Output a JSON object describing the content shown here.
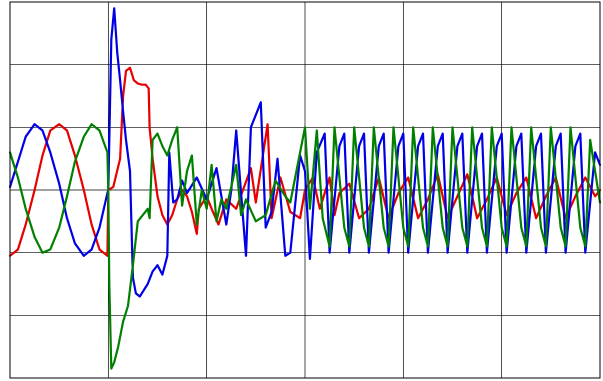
{
  "chart_data": {
    "type": "line",
    "title": "",
    "xlabel": "",
    "ylabel": "",
    "x_range": [
      0,
      6
    ],
    "y_range": [
      -3,
      3
    ],
    "grid": true,
    "legend": "none",
    "fault_time": 1.0,
    "series": [
      {
        "color": "#e60000",
        "points": [
          [
            0,
            -1.05
          ],
          [
            0.08,
            -0.95
          ],
          [
            0.16,
            -0.55
          ],
          [
            0.25,
            0.0
          ],
          [
            0.33,
            0.55
          ],
          [
            0.41,
            0.95
          ],
          [
            0.5,
            1.05
          ],
          [
            0.58,
            0.95
          ],
          [
            0.66,
            0.55
          ],
          [
            0.75,
            0.0
          ],
          [
            0.83,
            -0.55
          ],
          [
            0.91,
            -0.95
          ],
          [
            0.99,
            -1.05
          ],
          [
            1.0,
            0.0
          ],
          [
            1.05,
            0.05
          ],
          [
            1.12,
            0.5
          ],
          [
            1.15,
            1.5
          ],
          [
            1.18,
            1.9
          ],
          [
            1.22,
            1.95
          ],
          [
            1.26,
            1.75
          ],
          [
            1.3,
            1.7
          ],
          [
            1.34,
            1.68
          ],
          [
            1.38,
            1.68
          ],
          [
            1.41,
            1.62
          ],
          [
            1.42,
            1.0
          ],
          [
            1.45,
            0.5
          ],
          [
            1.5,
            -0.1
          ],
          [
            1.55,
            -0.4
          ],
          [
            1.6,
            -0.55
          ],
          [
            1.65,
            -0.4
          ],
          [
            1.7,
            -0.15
          ],
          [
            1.75,
            0.0
          ],
          [
            1.8,
            -0.1
          ],
          [
            1.85,
            -0.35
          ],
          [
            1.9,
            -0.7
          ],
          [
            1.92,
            -0.3
          ],
          [
            2.0,
            -0.1
          ],
          [
            2.05,
            -0.3
          ],
          [
            2.12,
            -0.55
          ],
          [
            2.2,
            -0.15
          ],
          [
            2.3,
            -0.3
          ],
          [
            2.45,
            0.35
          ],
          [
            2.5,
            -0.2
          ],
          [
            2.62,
            1.05
          ],
          [
            2.66,
            -0.45
          ],
          [
            2.75,
            0.2
          ],
          [
            2.85,
            -0.35
          ],
          [
            2.95,
            -0.45
          ],
          [
            3.0,
            0.0
          ],
          [
            3.08,
            0.2
          ],
          [
            3.15,
            -0.3
          ],
          [
            3.25,
            0.2
          ],
          [
            3.3,
            -0.4
          ],
          [
            3.35,
            -0.05
          ],
          [
            3.45,
            0.1
          ],
          [
            3.55,
            -0.45
          ],
          [
            3.65,
            -0.3
          ],
          [
            3.75,
            0.2
          ],
          [
            3.85,
            -0.45
          ],
          [
            3.95,
            -0.05
          ],
          [
            4.05,
            0.2
          ],
          [
            4.15,
            -0.45
          ],
          [
            4.25,
            -0.15
          ],
          [
            4.35,
            0.25
          ],
          [
            4.45,
            -0.45
          ],
          [
            4.55,
            -0.1
          ],
          [
            4.65,
            0.25
          ],
          [
            4.75,
            -0.45
          ],
          [
            4.85,
            -0.15
          ],
          [
            4.95,
            0.2
          ],
          [
            5.05,
            -0.4
          ],
          [
            5.15,
            -0.05
          ],
          [
            5.25,
            0.2
          ],
          [
            5.35,
            -0.45
          ],
          [
            5.45,
            -0.1
          ],
          [
            5.55,
            0.2
          ],
          [
            5.65,
            -0.45
          ],
          [
            5.75,
            -0.1
          ],
          [
            5.85,
            0.2
          ],
          [
            5.95,
            -0.1
          ],
          [
            6.0,
            0.0
          ]
        ]
      },
      {
        "color": "#0000e6",
        "points": [
          [
            0,
            0.05
          ],
          [
            0.08,
            0.45
          ],
          [
            0.16,
            0.85
          ],
          [
            0.25,
            1.05
          ],
          [
            0.33,
            0.95
          ],
          [
            0.41,
            0.6
          ],
          [
            0.5,
            0.1
          ],
          [
            0.58,
            -0.45
          ],
          [
            0.66,
            -0.85
          ],
          [
            0.75,
            -1.05
          ],
          [
            0.83,
            -0.95
          ],
          [
            0.91,
            -0.6
          ],
          [
            0.99,
            -0.05
          ],
          [
            1.0,
            0.0
          ],
          [
            1.03,
            2.4
          ],
          [
            1.06,
            2.9
          ],
          [
            1.09,
            2.2
          ],
          [
            1.12,
            1.75
          ],
          [
            1.15,
            1.25
          ],
          [
            1.18,
            0.8
          ],
          [
            1.22,
            0.3
          ],
          [
            1.25,
            -1.4
          ],
          [
            1.28,
            -1.65
          ],
          [
            1.32,
            -1.7
          ],
          [
            1.36,
            -1.6
          ],
          [
            1.4,
            -1.5
          ],
          [
            1.45,
            -1.3
          ],
          [
            1.5,
            -1.2
          ],
          [
            1.55,
            -1.35
          ],
          [
            1.6,
            -1.05
          ],
          [
            1.62,
            0.6
          ],
          [
            1.66,
            -0.2
          ],
          [
            1.7,
            -0.15
          ],
          [
            1.75,
            0.15
          ],
          [
            1.8,
            -0.05
          ],
          [
            1.9,
            0.2
          ],
          [
            2.0,
            -0.15
          ],
          [
            2.1,
            0.35
          ],
          [
            2.2,
            -0.55
          ],
          [
            2.25,
            0.0
          ],
          [
            2.3,
            0.95
          ],
          [
            2.4,
            -1.05
          ],
          [
            2.45,
            1.0
          ],
          [
            2.55,
            1.4
          ],
          [
            2.6,
            -0.6
          ],
          [
            2.66,
            -0.35
          ],
          [
            2.72,
            0.5
          ],
          [
            2.8,
            -1.05
          ],
          [
            2.85,
            -1.0
          ],
          [
            2.95,
            0.55
          ],
          [
            3.0,
            0.3
          ],
          [
            3.05,
            -1.1
          ],
          [
            3.12,
            0.6
          ],
          [
            3.2,
            0.9
          ],
          [
            3.25,
            -1.0
          ],
          [
            3.35,
            0.7
          ],
          [
            3.4,
            0.9
          ],
          [
            3.45,
            -1.0
          ],
          [
            3.55,
            0.7
          ],
          [
            3.6,
            0.9
          ],
          [
            3.65,
            -1.0
          ],
          [
            3.75,
            0.7
          ],
          [
            3.8,
            0.9
          ],
          [
            3.85,
            -1.0
          ],
          [
            3.95,
            0.7
          ],
          [
            4.0,
            0.9
          ],
          [
            4.05,
            -1.0
          ],
          [
            4.15,
            0.7
          ],
          [
            4.2,
            0.9
          ],
          [
            4.25,
            -1.0
          ],
          [
            4.35,
            0.7
          ],
          [
            4.4,
            0.9
          ],
          [
            4.45,
            -1.0
          ],
          [
            4.55,
            0.7
          ],
          [
            4.6,
            0.9
          ],
          [
            4.65,
            -1.0
          ],
          [
            4.75,
            0.7
          ],
          [
            4.8,
            0.9
          ],
          [
            4.85,
            -1.0
          ],
          [
            4.95,
            0.7
          ],
          [
            5.0,
            0.9
          ],
          [
            5.05,
            -1.0
          ],
          [
            5.15,
            0.7
          ],
          [
            5.2,
            0.9
          ],
          [
            5.25,
            -1.0
          ],
          [
            5.35,
            0.7
          ],
          [
            5.4,
            0.9
          ],
          [
            5.45,
            -1.0
          ],
          [
            5.55,
            0.7
          ],
          [
            5.6,
            0.9
          ],
          [
            5.65,
            -1.0
          ],
          [
            5.75,
            0.7
          ],
          [
            5.8,
            0.9
          ],
          [
            5.85,
            -1.0
          ],
          [
            5.95,
            0.6
          ],
          [
            6.0,
            0.4
          ]
        ]
      },
      {
        "color": "#008000",
        "points": [
          [
            0,
            0.6
          ],
          [
            0.08,
            0.2
          ],
          [
            0.16,
            -0.3
          ],
          [
            0.25,
            -0.75
          ],
          [
            0.33,
            -1.0
          ],
          [
            0.41,
            -0.95
          ],
          [
            0.5,
            -0.6
          ],
          [
            0.58,
            -0.1
          ],
          [
            0.66,
            0.45
          ],
          [
            0.75,
            0.85
          ],
          [
            0.83,
            1.05
          ],
          [
            0.91,
            0.95
          ],
          [
            0.99,
            0.6
          ],
          [
            1.0,
            0.0
          ],
          [
            1.01,
            -1.5
          ],
          [
            1.03,
            -2.85
          ],
          [
            1.06,
            -2.75
          ],
          [
            1.1,
            -2.5
          ],
          [
            1.15,
            -2.1
          ],
          [
            1.2,
            -1.85
          ],
          [
            1.25,
            -1.2
          ],
          [
            1.3,
            -0.5
          ],
          [
            1.35,
            -0.4
          ],
          [
            1.4,
            -0.3
          ],
          [
            1.42,
            -0.45
          ],
          [
            1.45,
            0.8
          ],
          [
            1.5,
            0.9
          ],
          [
            1.55,
            0.7
          ],
          [
            1.6,
            0.55
          ],
          [
            1.65,
            0.8
          ],
          [
            1.7,
            1.0
          ],
          [
            1.75,
            -0.25
          ],
          [
            1.8,
            0.3
          ],
          [
            1.85,
            0.55
          ],
          [
            1.9,
            -0.55
          ],
          [
            1.95,
            0.0
          ],
          [
            2.0,
            -0.3
          ],
          [
            2.05,
            0.4
          ],
          [
            2.1,
            -0.5
          ],
          [
            2.15,
            -0.15
          ],
          [
            2.2,
            -0.3
          ],
          [
            2.3,
            0.4
          ],
          [
            2.35,
            -0.4
          ],
          [
            2.4,
            -0.15
          ],
          [
            2.5,
            -0.5
          ],
          [
            2.6,
            -0.4
          ],
          [
            2.7,
            0.15
          ],
          [
            2.8,
            -0.1
          ],
          [
            2.85,
            -0.2
          ],
          [
            3.0,
            1.0
          ],
          [
            3.05,
            -0.3
          ],
          [
            3.12,
            0.95
          ],
          [
            3.18,
            -0.45
          ],
          [
            3.25,
            -0.9
          ],
          [
            3.3,
            1.0
          ],
          [
            3.4,
            -0.6
          ],
          [
            3.45,
            -0.9
          ],
          [
            3.5,
            1.0
          ],
          [
            3.6,
            -0.6
          ],
          [
            3.65,
            -0.9
          ],
          [
            3.7,
            1.0
          ],
          [
            3.8,
            -0.6
          ],
          [
            3.85,
            -0.9
          ],
          [
            3.9,
            1.0
          ],
          [
            4.0,
            -0.6
          ],
          [
            4.05,
            -0.9
          ],
          [
            4.1,
            1.0
          ],
          [
            4.2,
            -0.6
          ],
          [
            4.25,
            -0.9
          ],
          [
            4.3,
            1.0
          ],
          [
            4.4,
            -0.6
          ],
          [
            4.45,
            -0.9
          ],
          [
            4.5,
            1.0
          ],
          [
            4.6,
            -0.6
          ],
          [
            4.65,
            -0.9
          ],
          [
            4.7,
            1.0
          ],
          [
            4.8,
            -0.6
          ],
          [
            4.85,
            -0.9
          ],
          [
            4.9,
            1.0
          ],
          [
            5.0,
            -0.6
          ],
          [
            5.05,
            -0.9
          ],
          [
            5.1,
            1.0
          ],
          [
            5.2,
            -0.6
          ],
          [
            5.25,
            -0.9
          ],
          [
            5.3,
            1.0
          ],
          [
            5.4,
            -0.6
          ],
          [
            5.45,
            -0.9
          ],
          [
            5.5,
            1.0
          ],
          [
            5.6,
            -0.6
          ],
          [
            5.65,
            -0.9
          ],
          [
            5.7,
            1.0
          ],
          [
            5.8,
            -0.6
          ],
          [
            5.85,
            -0.9
          ],
          [
            5.9,
            0.8
          ],
          [
            6.0,
            -0.2
          ]
        ]
      }
    ]
  }
}
